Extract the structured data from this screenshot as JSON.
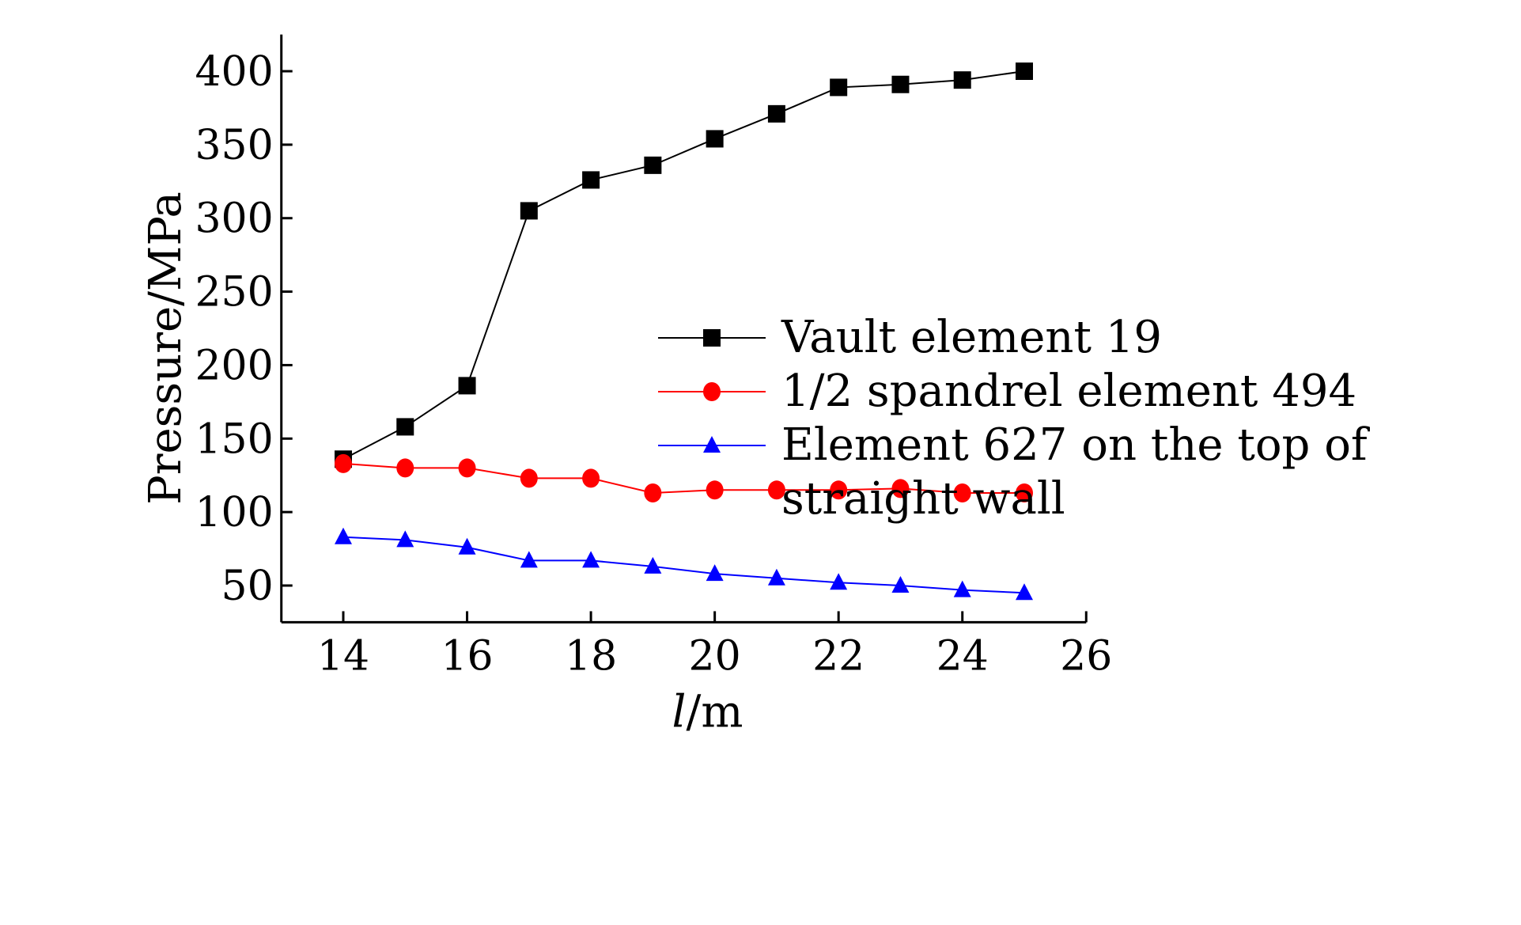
{
  "chart_data": {
    "type": "line",
    "xlabel": "l/m",
    "ylabel": "Pressure/MPa",
    "xlim": [
      13,
      26
    ],
    "ylim": [
      25,
      425
    ],
    "xticks": [
      14,
      16,
      18,
      20,
      22,
      24,
      26
    ],
    "yticks": [
      50,
      100,
      150,
      200,
      250,
      300,
      350,
      400
    ],
    "legend_position": "center-right",
    "grid": false,
    "x": [
      14,
      15,
      16,
      17,
      18,
      19,
      20,
      21,
      22,
      23,
      24,
      25
    ],
    "series": [
      {
        "name": "Vault element 19",
        "color": "#000000",
        "marker": "square",
        "values": [
          136,
          158,
          186,
          305,
          326,
          336,
          354,
          371,
          389,
          391,
          394,
          400
        ]
      },
      {
        "name": "1/2 spandrel element 494",
        "color": "#ff0000",
        "marker": "circle",
        "values": [
          133,
          130,
          130,
          123,
          123,
          113,
          115,
          115,
          115,
          116,
          113,
          113
        ]
      },
      {
        "name": "Element 627 on the top of straight wall",
        "legend_lines": [
          "Element 627 on the top of",
          "straight wall"
        ],
        "color": "#0000ff",
        "marker": "triangle",
        "values": [
          83,
          81,
          76,
          67,
          67,
          63,
          58,
          55,
          52,
          50,
          47,
          45
        ]
      }
    ]
  }
}
